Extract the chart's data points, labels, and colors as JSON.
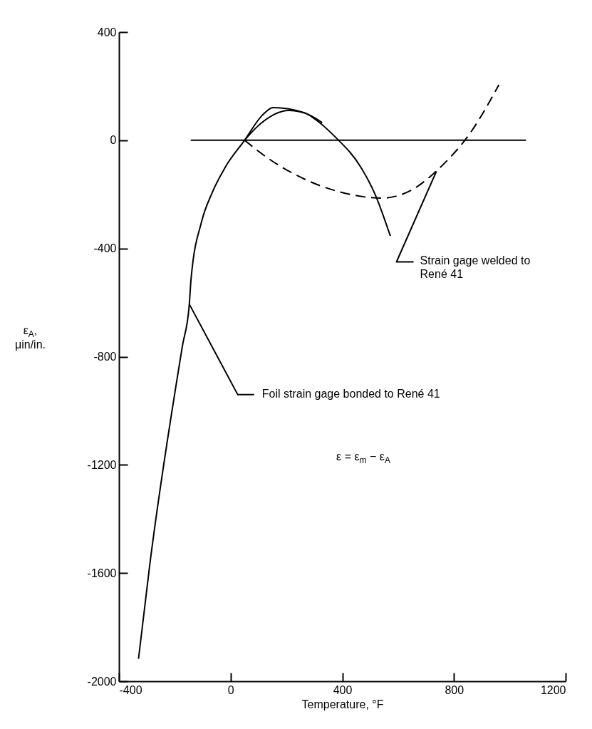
{
  "chart_data": {
    "type": "line",
    "xlabel": "Temperature, °F",
    "ylabel": "ε$_{A}$,\nμin/in.",
    "xlim": [
      -400,
      1200
    ],
    "ylim": [
      -2000,
      400
    ],
    "xticks": [
      -400,
      0,
      400,
      800,
      1200
    ],
    "yticks": [
      -2000,
      -1600,
      -1200,
      -800,
      -400,
      0,
      400
    ],
    "grid": false,
    "series": [
      {
        "color": "#000000",
        "line_style": "solid",
        "x": [
          -330,
          -290,
          -173,
          -148,
          -142,
          -104,
          -67,
          -19,
          50,
          113,
          152,
          264,
          305,
          374,
          466,
          520,
          572
        ],
        "values": [
          -1917,
          -1572,
          -762,
          -606,
          -515,
          -301,
          -196,
          -99,
          0,
          92,
          121,
          102,
          76,
          13,
          -99,
          -206,
          -354
        ]
      },
      {
        "color": "#000000",
        "line_style": "solid",
        "x": [
          50,
          93,
          210,
          285,
          328
        ],
        "values": [
          0,
          48,
          110,
          92,
          65
        ]
      },
      {
        "color": "#000000",
        "line_style": "dashed",
        "x": [
          50,
          136,
          274,
          433,
          540,
          646,
          752,
          859,
          961
        ],
        "values": [
          0,
          -68,
          -148,
          -201,
          -214,
          -185,
          -99,
          28,
          205
        ]
      },
      {
        "color": "#000000",
        "line_style": "solid",
        "x": [
          -143,
          1058
        ],
        "values": [
          0,
          0
        ]
      }
    ],
    "annotations": [
      {
        "text": "Foil strain gage bonded to René 41",
        "x": -148,
        "y": -606
      },
      {
        "text": "Strain gage welded to\nRené 41",
        "x": 737,
        "y": -115
      },
      "ε = ε$_{m}$ − ε$_{A}$"
    ]
  }
}
